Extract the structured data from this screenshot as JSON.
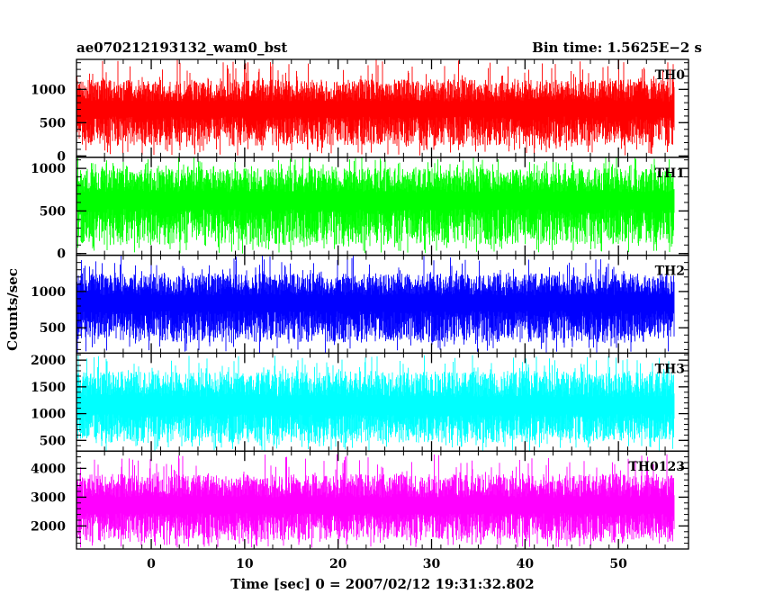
{
  "chart_data": {
    "type": "line",
    "title_left": "ae070212193132_wam0_bst",
    "title_right": "Bin time: 1.5625E−2 s",
    "xlabel": "Time [sec] 0 = 2007/02/12 19:31:32.802",
    "ylabel": "Counts/sec",
    "xlim": [
      -8,
      57.5
    ],
    "x_range": [
      -8,
      56
    ],
    "x_ticks": [
      0,
      10,
      20,
      30,
      40,
      50
    ],
    "x_tick_labels": [
      "0",
      "10",
      "20",
      "30",
      "40",
      "50"
    ],
    "grid": false,
    "legend": "none",
    "panels": [
      {
        "name": "TH0",
        "color": "#ff0000",
        "ylim": [
          -20,
          1450
        ],
        "y_ticks": [
          0,
          500,
          1000
        ],
        "y_tick_labels": [
          "0",
          "500",
          "1000"
        ],
        "mean": 640,
        "typical_range": [
          150,
          1150
        ],
        "extreme_range": [
          0,
          1450
        ]
      },
      {
        "name": "TH1",
        "color": "#00ff00",
        "ylim": [
          -20,
          1130
        ],
        "y_ticks": [
          0,
          500,
          1000
        ],
        "y_tick_labels": [
          "0",
          "500",
          "1000"
        ],
        "mean": 570,
        "typical_range": [
          100,
          1000
        ],
        "extreme_range": [
          0,
          1130
        ]
      },
      {
        "name": "TH2",
        "color": "#0000ff",
        "ylim": [
          150,
          1500
        ],
        "y_ticks": [
          500,
          1000
        ],
        "y_tick_labels": [
          "500",
          "1000"
        ],
        "mean": 780,
        "typical_range": [
          300,
          1250
        ],
        "extreme_range": [
          150,
          1500
        ]
      },
      {
        "name": "TH3",
        "color": "#00ffff",
        "ylim": [
          300,
          2130
        ],
        "y_ticks": [
          500,
          1000,
          1500,
          2000
        ],
        "y_tick_labels": [
          "500",
          "1000",
          "1500",
          "2000"
        ],
        "mean": 1050,
        "typical_range": [
          450,
          1800
        ],
        "extreme_range": [
          300,
          2100
        ]
      },
      {
        "name": "TH0123",
        "color": "#ff00ff",
        "ylim": [
          1200,
          4600
        ],
        "y_ticks": [
          2000,
          3000,
          4000
        ],
        "y_tick_labels": [
          "2000",
          "3000",
          "4000"
        ],
        "mean": 2550,
        "typical_range": [
          1500,
          3800
        ],
        "extreme_range": [
          1250,
          4500
        ]
      }
    ]
  }
}
